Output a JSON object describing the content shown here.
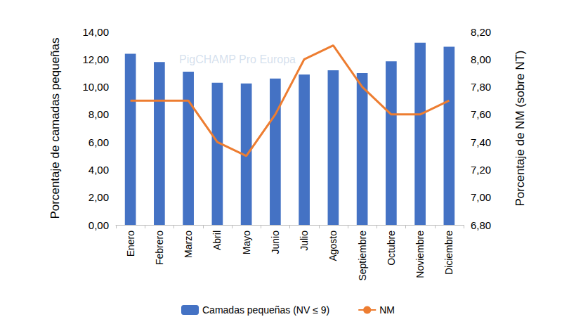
{
  "chart_data": {
    "type": "bar",
    "categories": [
      "Enero",
      "Febrero",
      "Marzo",
      "Abril",
      "Mayo",
      "Junio",
      "Julio",
      "Agosto",
      "Septiembre",
      "Octubre",
      "Noviembre",
      "Diciembre"
    ],
    "series": [
      {
        "name": "Camadas pequeñas (NV ≤ 9)",
        "type": "bar",
        "color": "#4472c4",
        "values": [
          12.4,
          11.8,
          11.1,
          10.3,
          10.25,
          10.6,
          10.9,
          11.2,
          11.0,
          11.85,
          13.2,
          12.9
        ]
      },
      {
        "name": "NM",
        "type": "line",
        "axis": "y2",
        "color": "#ed7d31",
        "marker": "none",
        "line_style": "solid",
        "values": [
          7.7,
          7.7,
          7.7,
          7.4,
          7.3,
          7.6,
          8.0,
          8.1,
          7.8,
          7.6,
          7.6,
          7.7
        ]
      }
    ],
    "y_label": "Porcentaje de camadas pequeñas",
    "y2_label": "Porcentaje de NM (sobre NT)",
    "ylim": [
      0,
      14
    ],
    "yticks": [
      {
        "value": 0,
        "label": "0,00"
      },
      {
        "value": 2,
        "label": "2,00"
      },
      {
        "value": 4,
        "label": "4,00"
      },
      {
        "value": 6,
        "label": "6,00"
      },
      {
        "value": 8,
        "label": "8,00"
      },
      {
        "value": 10,
        "label": "10,00"
      },
      {
        "value": 12,
        "label": "12,00"
      },
      {
        "value": 14,
        "label": "14,00"
      }
    ],
    "y2lim": [
      6.8,
      8.2
    ],
    "y2ticks": [
      {
        "value": 6.8,
        "label": "6,80"
      },
      {
        "value": 7.0,
        "label": "7,00"
      },
      {
        "value": 7.2,
        "label": "7,20"
      },
      {
        "value": 7.4,
        "label": "7,40"
      },
      {
        "value": 7.6,
        "label": "7,60"
      },
      {
        "value": 7.8,
        "label": "7,80"
      },
      {
        "value": 8.0,
        "label": "8,00"
      },
      {
        "value": 8.2,
        "label": "8,20"
      }
    ],
    "annotations": [
      "PigCHAMP Pro Europa"
    ],
    "grid": false,
    "legend": "bottom"
  }
}
